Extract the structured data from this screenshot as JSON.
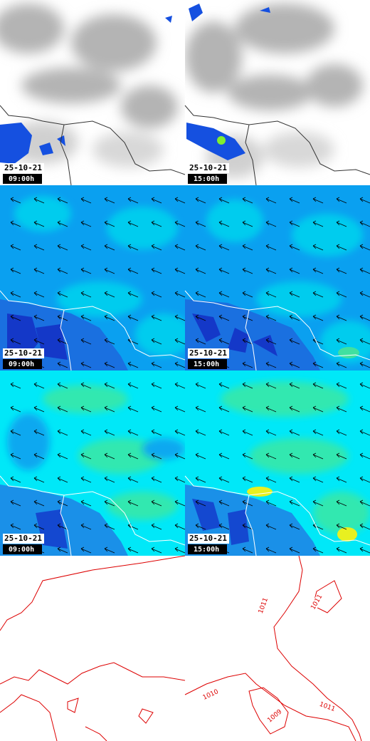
{
  "rows": [
    {
      "panels": [
        {
          "date": "25-10-21",
          "time": "09:00h"
        },
        {
          "date": "25-10-21",
          "time": "15:00h"
        }
      ]
    },
    {
      "panels": [
        {
          "date": "25-10-21",
          "time": "09:00h"
        },
        {
          "date": "25-10-21",
          "time": "15:00h"
        }
      ]
    },
    {
      "panels": [
        {
          "date": "25-10-21",
          "time": "09:00h"
        },
        {
          "date": "25-10-21",
          "time": "15:00h"
        }
      ]
    }
  ],
  "isobars": {
    "labels": [
      "1011",
      "1011",
      "1010",
      "1009",
      "1011"
    ]
  }
}
